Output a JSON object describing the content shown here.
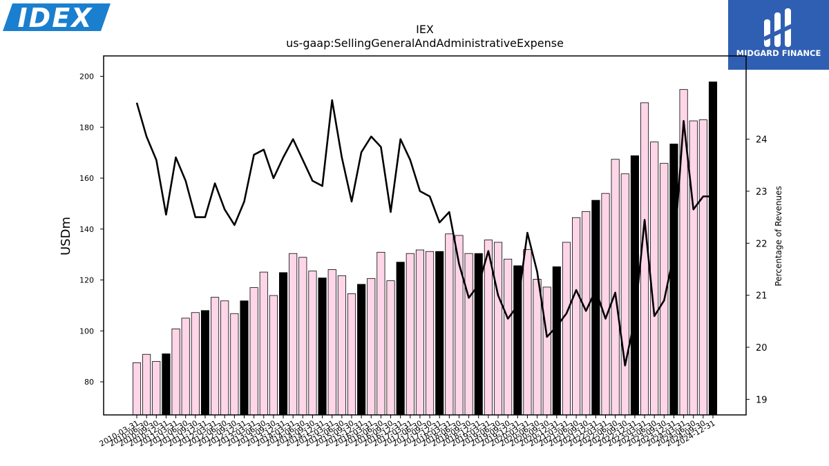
{
  "logos": {
    "company_logo_text": "IDEX",
    "company_logo_color": "#1a7fcf",
    "brand_text": "MIDGARD FINANCE",
    "brand_color": "#2f5fb3"
  },
  "chart_data": {
    "type": "bar",
    "title": "IEX",
    "subtitle": "us-gaap:SellingGeneralAndAdministrativeExpense",
    "ylabel": "USDm",
    "y2label": "Percentage of Revenues",
    "ylim": [
      67,
      208
    ],
    "y2lim": [
      18.7,
      25.6
    ],
    "yticks": [
      80,
      100,
      120,
      140,
      160,
      180,
      200
    ],
    "y2ticks": [
      19,
      20,
      21,
      22,
      23,
      24
    ],
    "colors": {
      "bar_default": "#ffd6e8",
      "bar_highlight": "#000000",
      "line": "#000000"
    },
    "categories": [
      "2010-03-31",
      "2010-06-30",
      "2010-09-30",
      "2010-12-31",
      "2011-03-31",
      "2011-06-30",
      "2011-09-30",
      "2011-12-31",
      "2012-03-31",
      "2012-06-30",
      "2012-09-30",
      "2012-12-31",
      "2013-03-31",
      "2013-06-30",
      "2013-09-30",
      "2013-12-31",
      "2014-03-31",
      "2014-06-30",
      "2014-09-30",
      "2014-12-31",
      "2015-03-31",
      "2015-06-30",
      "2015-09-30",
      "2015-12-31",
      "2016-03-31",
      "2016-06-30",
      "2016-09-30",
      "2016-12-31",
      "2017-03-31",
      "2017-06-30",
      "2017-09-30",
      "2017-12-31",
      "2018-03-31",
      "2018-06-30",
      "2018-09-30",
      "2018-12-31",
      "2019-03-31",
      "2019-06-30",
      "2019-09-30",
      "2019-12-31",
      "2020-03-31",
      "2020-06-30",
      "2020-09-30",
      "2020-12-31",
      "2021-03-31",
      "2021-06-30",
      "2021-09-30",
      "2021-12-31",
      "2022-03-31",
      "2022-06-30",
      "2022-09-30",
      "2022-12-31",
      "2023-03-31",
      "2023-06-30",
      "2023-09-30",
      "2023-12-31",
      "2024-03-31",
      "2024-06-30",
      "2024-09-30",
      "2024-12-31"
    ],
    "series": [
      {
        "name": "",
        "kind": "bar",
        "axis": "left",
        "values": [
          87.5,
          90.8,
          88.0,
          91.0,
          100.8,
          105.0,
          107.2,
          108.0,
          113.2,
          111.8,
          106.8,
          111.8,
          117.0,
          123.1,
          113.9,
          122.9,
          130.4,
          128.9,
          123.5,
          120.8,
          124.1,
          121.7,
          114.6,
          118.3,
          120.6,
          130.9,
          119.7,
          127.0,
          130.4,
          131.8,
          131.2,
          131.2,
          138.1,
          137.5,
          130.4,
          130.4,
          135.7,
          134.8,
          128.2,
          125.6,
          132.0,
          120.3,
          117.2,
          125.2,
          134.8,
          144.5,
          146.9,
          151.3,
          154.0,
          167.4,
          161.7,
          168.8,
          189.6,
          174.2,
          165.8,
          173.4,
          194.8,
          182.5,
          182.9,
          197.8
        ],
        "highlight": [
          false,
          false,
          false,
          true,
          false,
          false,
          false,
          true,
          false,
          false,
          false,
          true,
          false,
          false,
          false,
          true,
          false,
          false,
          false,
          true,
          false,
          false,
          false,
          true,
          false,
          false,
          false,
          true,
          false,
          false,
          false,
          true,
          false,
          false,
          false,
          true,
          false,
          false,
          false,
          true,
          false,
          false,
          false,
          true,
          false,
          false,
          false,
          true,
          false,
          false,
          false,
          true,
          false,
          false,
          false,
          true,
          false,
          false,
          false,
          true
        ]
      },
      {
        "name": "",
        "kind": "line",
        "axis": "right",
        "values": [
          24.7,
          24.05,
          23.6,
          22.55,
          23.65,
          23.2,
          22.5,
          22.5,
          23.15,
          22.65,
          22.35,
          22.8,
          23.7,
          23.8,
          23.25,
          23.65,
          24.0,
          23.6,
          23.2,
          23.1,
          24.75,
          23.65,
          22.8,
          23.75,
          24.05,
          23.85,
          22.6,
          24.0,
          23.6,
          23.0,
          22.9,
          22.4,
          22.6,
          21.6,
          20.95,
          21.2,
          21.85,
          21.0,
          20.55,
          20.8,
          22.2,
          21.45,
          20.2,
          20.4,
          20.65,
          21.1,
          20.7,
          21.1,
          20.55,
          21.05,
          19.65,
          20.55,
          22.45,
          20.6,
          20.9,
          21.8,
          24.35,
          22.65,
          22.9,
          22.9
        ]
      }
    ]
  }
}
